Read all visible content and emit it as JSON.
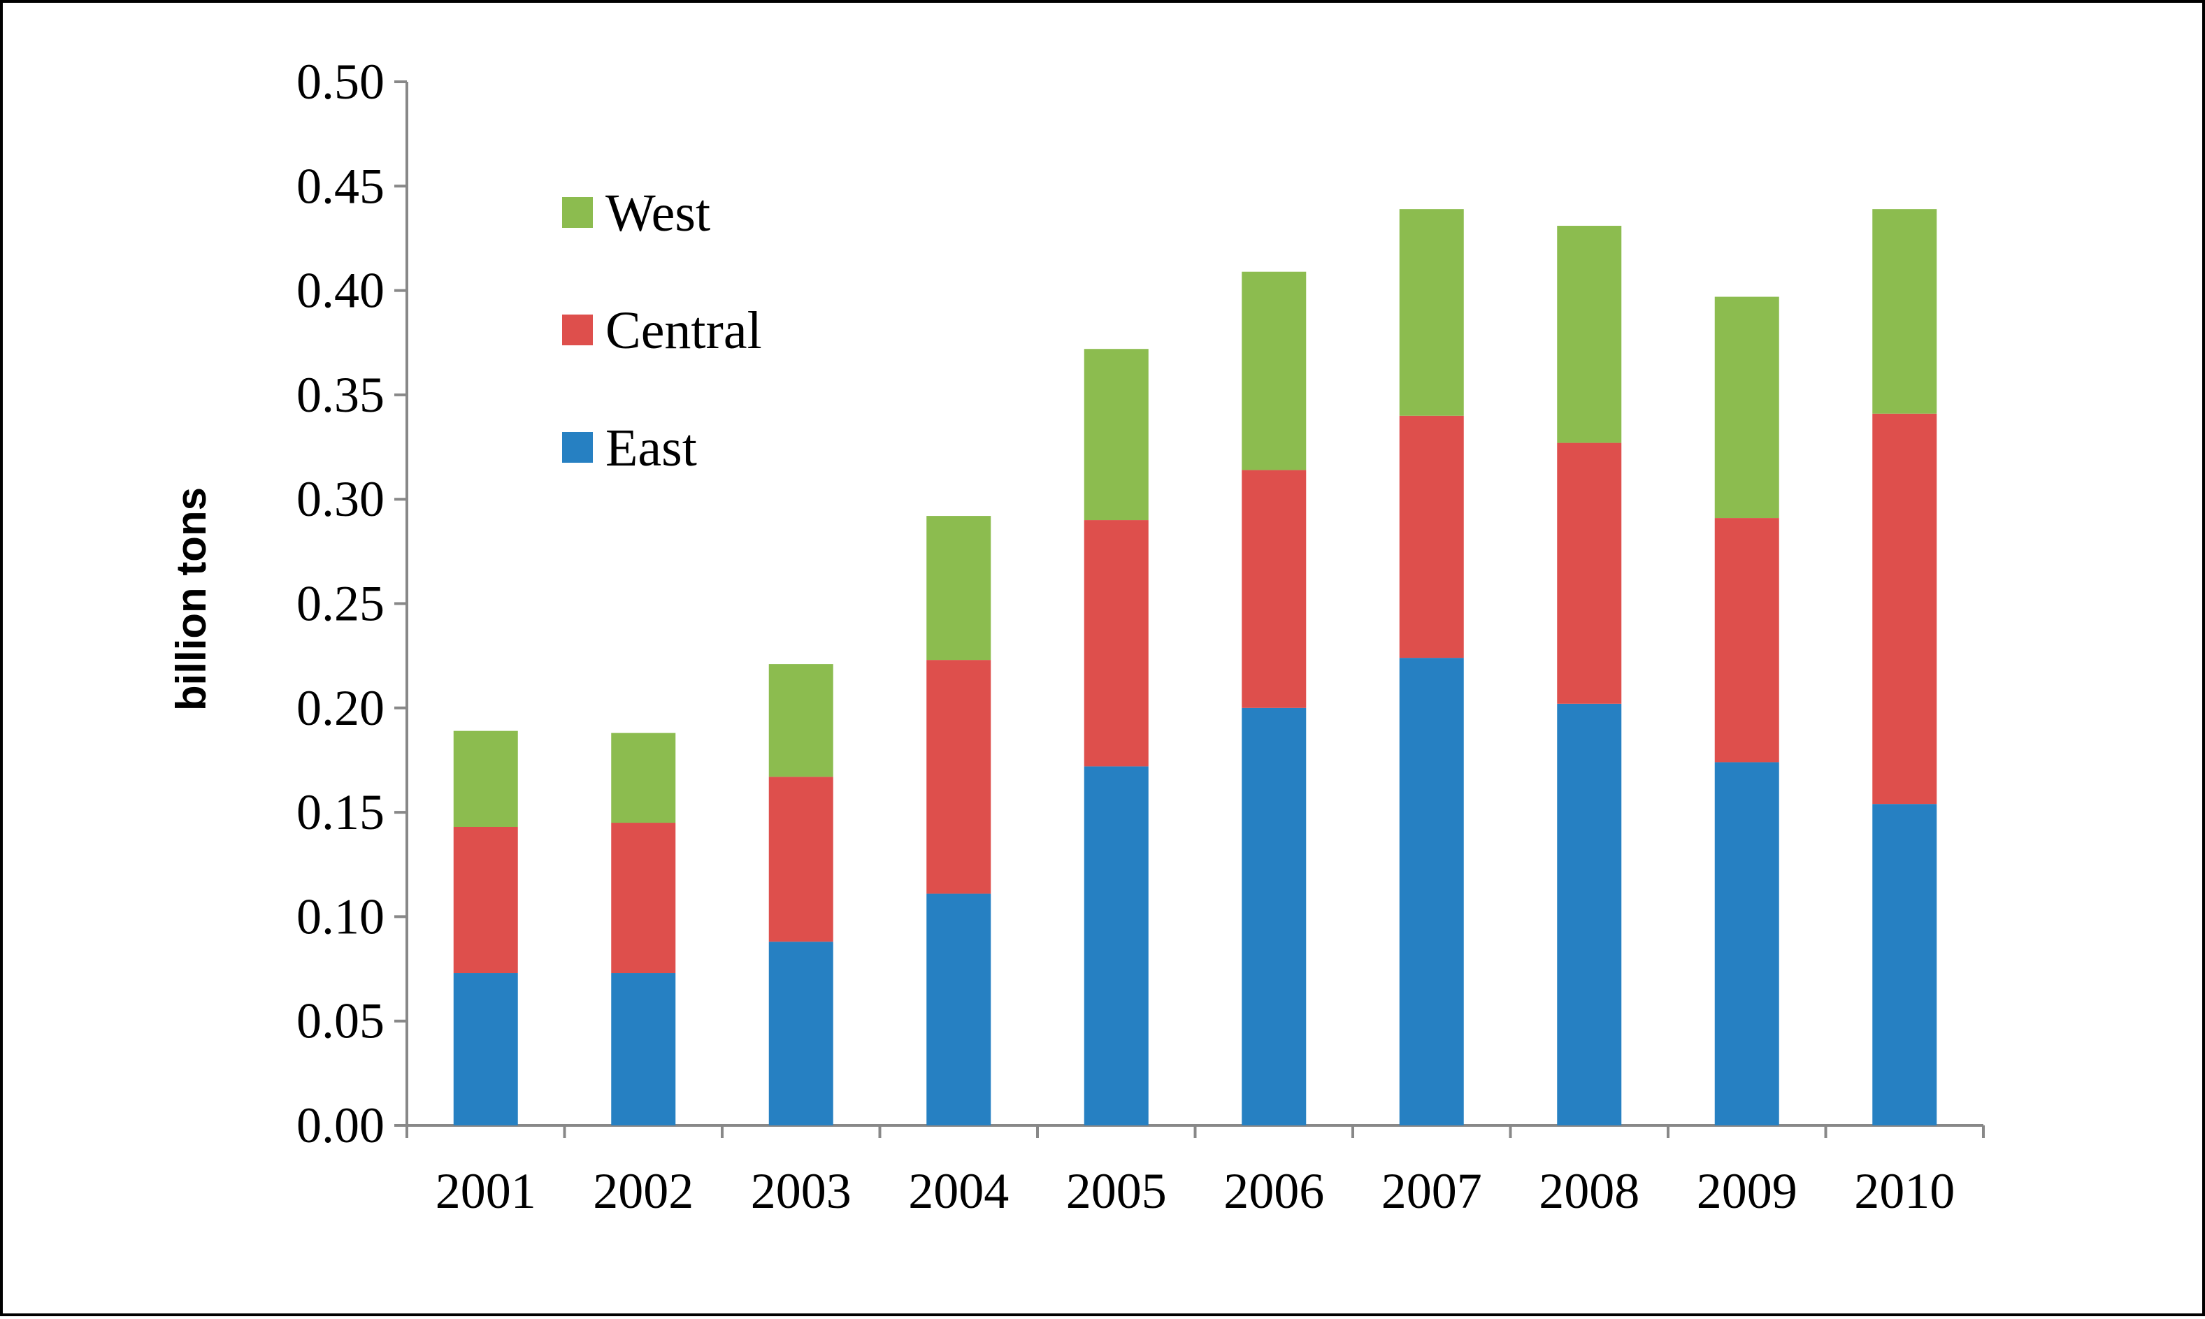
{
  "chart_data": {
    "type": "bar",
    "stacked": true,
    "title": "",
    "xlabel": "",
    "ylabel": "billion tons",
    "ylim": [
      0,
      0.5
    ],
    "yticks": [
      "0.00",
      "0.05",
      "0.10",
      "0.15",
      "0.20",
      "0.25",
      "0.30",
      "0.35",
      "0.40",
      "0.45",
      "0.50"
    ],
    "categories": [
      "2001",
      "2002",
      "2003",
      "2004",
      "2005",
      "2006",
      "2007",
      "2008",
      "2009",
      "2010"
    ],
    "series": [
      {
        "name": "East",
        "color": "#2680c2",
        "values": [
          0.073,
          0.073,
          0.088,
          0.111,
          0.172,
          0.2,
          0.224,
          0.202,
          0.174,
          0.154
        ]
      },
      {
        "name": "Central",
        "color": "#de4f4c",
        "values": [
          0.07,
          0.072,
          0.079,
          0.112,
          0.118,
          0.114,
          0.116,
          0.125,
          0.117,
          0.187
        ]
      },
      {
        "name": "West",
        "color": "#8cbc4f",
        "values": [
          0.046,
          0.043,
          0.054,
          0.069,
          0.082,
          0.095,
          0.099,
          0.104,
          0.106,
          0.098
        ]
      }
    ],
    "legend": {
      "position": "top-left",
      "order": [
        "West",
        "Central",
        "East"
      ]
    },
    "grid": false
  }
}
